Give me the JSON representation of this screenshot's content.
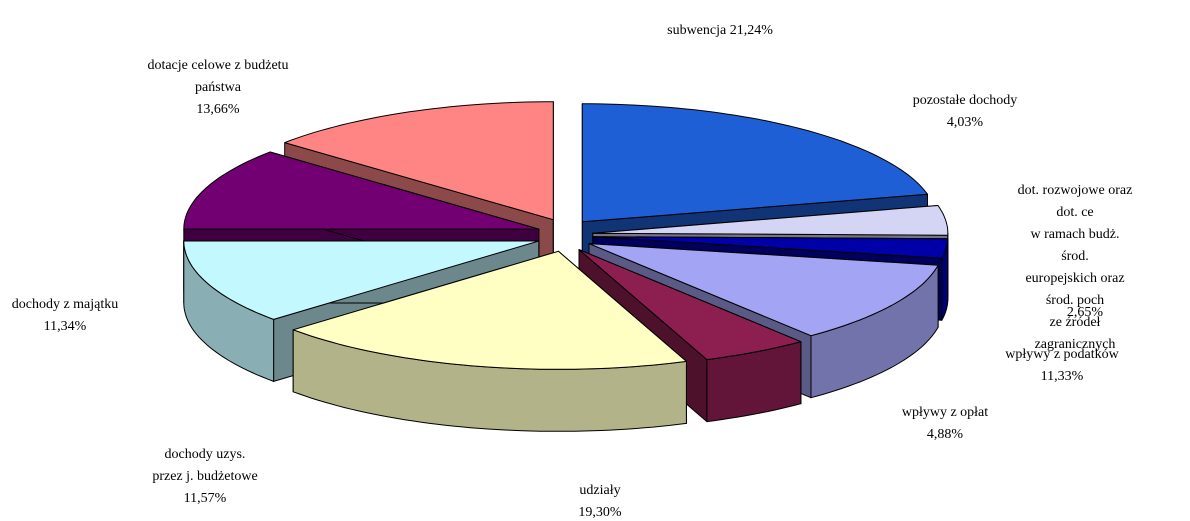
{
  "chart_data": {
    "type": "pie3d",
    "categories": [
      "subwencja",
      "pozostałe dochody",
      "dot. rozwojowe oraz  dot. ce\nw ramach budż. środ.\neuropejskich oraz środ. poch\nze źródeł zagranicznych",
      "wpływy z podatków",
      "wpływy z opłat",
      "udziały",
      "dochody uzys.\nprzez j. budżetowe",
      "dochody z majątku",
      "dotacje celowe z budżetu\npaństwa"
    ],
    "values": [
      21.24,
      4.03,
      2.65,
      11.33,
      4.88,
      19.3,
      11.57,
      11.34,
      13.66
    ],
    "value_labels": [
      "21,24%",
      "4,03%",
      "2,65%",
      "11,33%",
      "4,88%",
      "19,30%",
      "11,57%",
      "11,34%",
      "13,66%"
    ],
    "colors": [
      "#1f5fd6",
      "#d4d4f4",
      "#0000a8",
      "#a4a4f4",
      "#8c1e50",
      "#ffffc4",
      "#c4f8ff",
      "#720072",
      "#ff8484"
    ]
  }
}
